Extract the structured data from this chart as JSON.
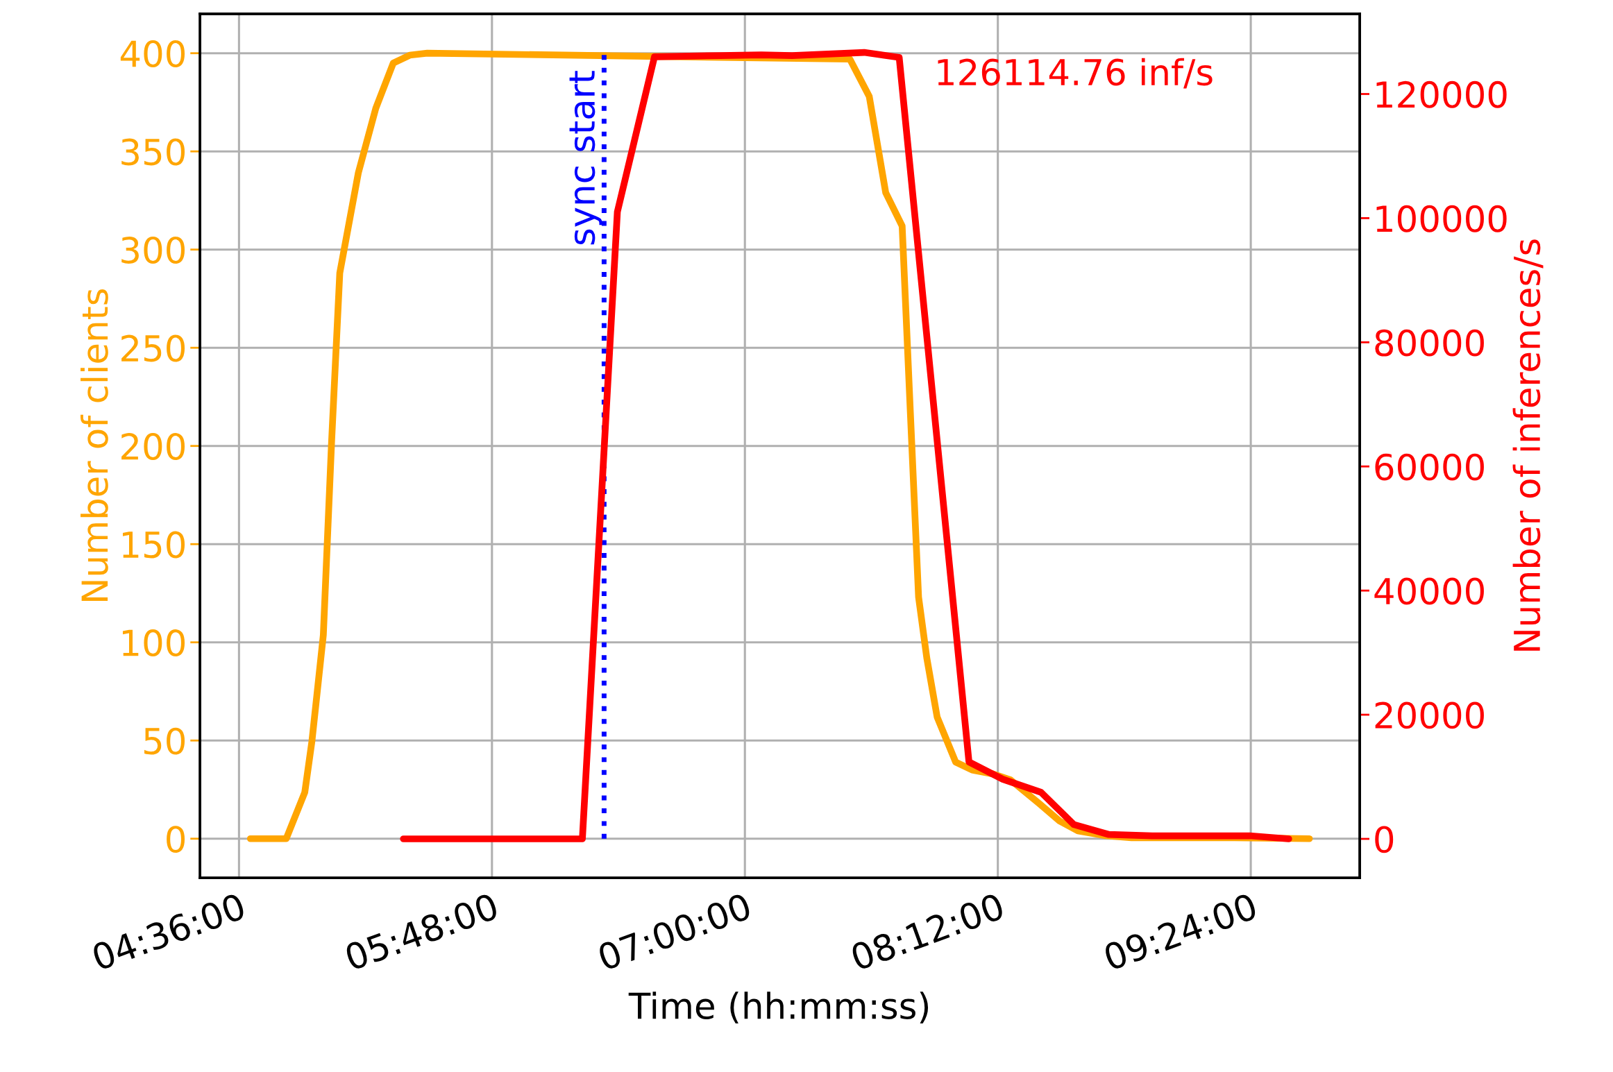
{
  "chart_data": {
    "type": "line",
    "xlabel": "Time (hh:mm:ss)",
    "ylabel": "Number of clients",
    "y2label": "Number of inferences/s",
    "xlim": [
      4.415,
      9.917
    ],
    "xticks": [
      {
        "value": 4.6,
        "label": "04:36:00"
      },
      {
        "value": 5.8,
        "label": "05:48:00"
      },
      {
        "value": 7.0,
        "label": "07:00:00"
      },
      {
        "value": 8.2,
        "label": "08:12:00"
      },
      {
        "value": 9.4,
        "label": "09:24:00"
      }
    ],
    "ylim": [
      -20,
      420
    ],
    "yticks": [
      0,
      50,
      100,
      150,
      200,
      250,
      300,
      350,
      400
    ],
    "y2lim": [
      -6300,
      132900
    ],
    "y2ticks": [
      0,
      20000,
      40000,
      60000,
      80000,
      100000,
      120000
    ],
    "grid": true,
    "line_style": "solid",
    "marker": "none",
    "series": [
      {
        "color": "#ffa500",
        "x": [
          4.654,
          4.824,
          4.912,
          4.946,
          5.0,
          5.039,
          5.078,
          5.166,
          5.249,
          5.332,
          5.41,
          5.493,
          7.498,
          7.59,
          7.668,
          7.746,
          7.785,
          7.824,
          7.863,
          7.912,
          8.0,
          8.078,
          8.176,
          8.259,
          8.395,
          8.493,
          8.58,
          8.712,
          8.834,
          9.322,
          9.678
        ],
        "values": [
          0,
          0,
          23.6,
          49.7,
          103.7,
          201.6,
          288,
          339,
          372,
          395,
          399,
          400,
          397,
          378,
          329,
          312,
          217,
          123,
          92,
          62,
          39,
          35,
          33,
          30,
          18,
          9,
          4,
          1.5,
          0.5,
          0.5,
          0
        ]
      },
      {
        "color": "#ff0000",
        "axis": "y2",
        "x": [
          5.38,
          6.229,
          6.395,
          6.571,
          6.883,
          7.078,
          7.224,
          7.566,
          7.732,
          8.063,
          8.224,
          8.405,
          8.561,
          8.727,
          8.932,
          9.395,
          9.58
        ],
        "values": [
          0,
          0,
          101000,
          126000,
          126200,
          126300,
          126200,
          126700,
          125900,
          12400,
          9600,
          7500,
          2300,
          700,
          500,
          500,
          0
        ]
      }
    ],
    "ref_lines": [
      {
        "axis": "x",
        "value": 6.332,
        "label": "sync start",
        "color": "#0000ff",
        "line_style": "dotted"
      }
    ],
    "annotations": [
      "126114.76 inf/s"
    ]
  }
}
